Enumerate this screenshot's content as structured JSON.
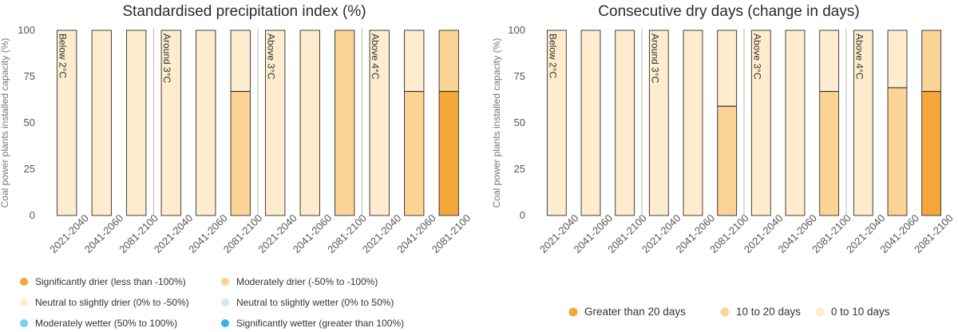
{
  "chart_data": [
    {
      "type": "bar",
      "stacked": true,
      "title": "Standardised precipitation index (%)",
      "ylabel": "Coal power plants installed capacity (%)",
      "ylim": [
        0,
        100
      ],
      "yticks": [
        0,
        25,
        50,
        75,
        100
      ],
      "scenarios": [
        "Below 2°C",
        "Around 3°C",
        "Above 3°C",
        "Above 4°C"
      ],
      "periods": [
        "2021-2040",
        "2041-2060",
        "2081-2100"
      ],
      "categories": [
        "2021-2040",
        "2041-2060",
        "2081-2100",
        "2021-2040",
        "2041-2060",
        "2081-2100",
        "2021-2040",
        "2041-2060",
        "2081-2100",
        "2021-2040",
        "2041-2060",
        "2081-2100"
      ],
      "series": [
        {
          "name": "Significantly drier (less than -100%)",
          "color": "#f5a83a",
          "values": [
            0,
            0,
            0,
            0,
            0,
            0,
            0,
            0,
            0,
            0,
            0,
            67
          ]
        },
        {
          "name": "Moderately drier (-50% to -100%)",
          "color": "#fbd394",
          "values": [
            0,
            0,
            0,
            0,
            0,
            67,
            0,
            0,
            100,
            0,
            67,
            33
          ]
        },
        {
          "name": "Neutral to slightly drier (0% to -50%)",
          "color": "#fdeccd",
          "values": [
            100,
            100,
            100,
            100,
            100,
            33,
            100,
            100,
            0,
            100,
            33,
            0
          ]
        },
        {
          "name": "Neutral to slightly wetter (0% to 50%)",
          "color": "#cdeaf7",
          "values": [
            0,
            0,
            0,
            0,
            0,
            0,
            0,
            0,
            0,
            0,
            0,
            0
          ]
        },
        {
          "name": "Moderately wetter (50% to 100%)",
          "color": "#7dcdf0",
          "values": [
            0,
            0,
            0,
            0,
            0,
            0,
            0,
            0,
            0,
            0,
            0,
            0
          ]
        },
        {
          "name": "Significantly wetter (greater than 100%)",
          "color": "#35b5ea",
          "values": [
            0,
            0,
            0,
            0,
            0,
            0,
            0,
            0,
            0,
            0,
            0,
            0
          ]
        }
      ],
      "legend_position": "bottom"
    },
    {
      "type": "bar",
      "stacked": true,
      "title": "Consecutive dry days (change in days)",
      "ylabel": "Coal power plants installed capacity (%)",
      "ylim": [
        0,
        100
      ],
      "yticks": [
        0,
        25,
        50,
        75,
        100
      ],
      "scenarios": [
        "Below 2°C",
        "Around 3°C",
        "Above 3°C",
        "Above 4°C"
      ],
      "periods": [
        "2021-2040",
        "2041-2060",
        "2081-2100"
      ],
      "categories": [
        "2021-2040",
        "2041-2060",
        "2081-2100",
        "2021-2040",
        "2041-2060",
        "2081-2100",
        "2021-2040",
        "2041-2060",
        "2081-2100",
        "2021-2040",
        "2041-2060",
        "2081-2100"
      ],
      "series": [
        {
          "name": "Greater than 20 days",
          "color": "#f5a83a",
          "values": [
            0,
            0,
            0,
            0,
            0,
            0,
            0,
            0,
            0,
            0,
            0,
            67
          ]
        },
        {
          "name": "10 to 20 days",
          "color": "#fbd394",
          "values": [
            0,
            0,
            0,
            0,
            0,
            59,
            0,
            0,
            67,
            0,
            69,
            33
          ]
        },
        {
          "name": "0 to 10 days",
          "color": "#fdeccd",
          "values": [
            100,
            100,
            100,
            100,
            100,
            41,
            100,
            100,
            33,
            100,
            31,
            0
          ]
        }
      ],
      "legend_position": "bottom"
    }
  ]
}
